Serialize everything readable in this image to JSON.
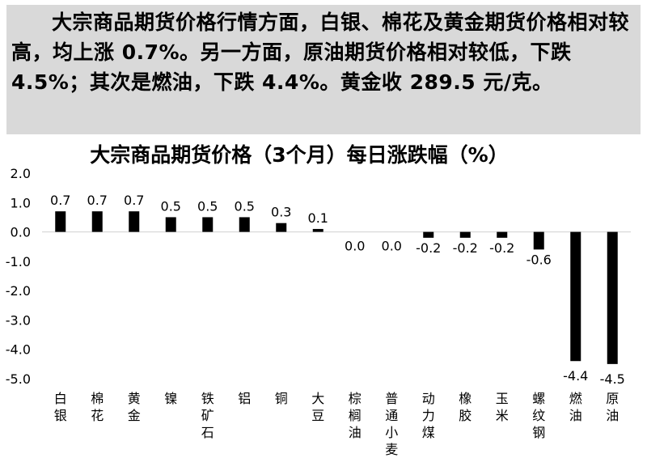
{
  "summary": {
    "text": "大宗商品期货价格行情方面，白银、棉花及黄金期货价格相对较高，均上涨 0.7%。另一方面，原油期货价格相对较低，下跌 4.5%；其次是燃油，下跌 4.4%。黄金收 289.5 元/克。"
  },
  "chart_data": {
    "type": "bar",
    "title": "大宗商品期货价格（3个月）每日涨跌幅（%）",
    "categories": [
      "白银",
      "棉花",
      "黄金",
      "镍",
      "铁矿石",
      "铝",
      "铜",
      "大豆",
      "棕榈油",
      "普通小麦",
      "动力煤",
      "橡胶",
      "玉米",
      "螺纹钢",
      "燃油",
      "原油"
    ],
    "values": [
      0.7,
      0.7,
      0.7,
      0.5,
      0.5,
      0.5,
      0.3,
      0.1,
      0.0,
      0.0,
      -0.2,
      -0.2,
      -0.2,
      -0.6,
      -4.4,
      -4.5
    ],
    "value_labels": [
      "0.7",
      "0.7",
      "0.7",
      "0.5",
      "0.5",
      "0.5",
      "0.3",
      "0.1",
      "0.0",
      "0.0",
      "-0.2",
      "-0.2",
      "-0.2",
      "-0.6",
      "-4.4",
      "-4.5"
    ],
    "y_ticks": [
      2.0,
      1.0,
      0.0,
      -1.0,
      -2.0,
      -3.0,
      -4.0,
      -5.0
    ],
    "y_tick_labels": [
      "2.0",
      "1.0",
      "0.0",
      "-1.0",
      "-2.0",
      "-3.0",
      "-4.0",
      "-5.0"
    ],
    "ylim": [
      -5.0,
      2.0
    ],
    "xlabel": "",
    "ylabel": "",
    "grid": false,
    "legend": "none",
    "bar_color": "#000000"
  }
}
